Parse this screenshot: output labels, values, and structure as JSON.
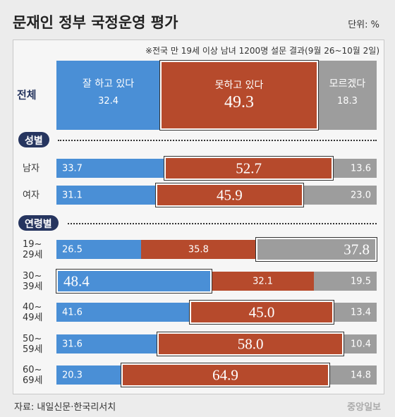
{
  "chart_data": {
    "type": "bar",
    "stacked": true,
    "title": "문재인 정부 국정운영 평가",
    "unit": "단위: %",
    "note": "※전국 만 19세 이상 남녀 1200명 설문 결과(9월 26~10월 2일)",
    "source": "자료: 내일신문·한국리서치",
    "brand": "중앙일보",
    "categories": [
      "전체",
      "남자",
      "여자",
      "19~\n29세",
      "30~\n39세",
      "40~\n49세",
      "50~\n59세",
      "60~\n69세"
    ],
    "groups": [
      {
        "name": "성별"
      },
      {
        "name": "연령별"
      }
    ],
    "series": [
      {
        "name": "잘 하고 있다",
        "color": "#4a8fd6",
        "values": [
          32.4,
          33.7,
          31.1,
          26.5,
          48.4,
          41.6,
          31.6,
          20.3
        ],
        "value_labels": [
          "32.4",
          "33.7",
          "31.1",
          "26.5",
          "48.4",
          "41.6",
          "31.6",
          "20.3"
        ]
      },
      {
        "name": "못하고 있다",
        "color": "#b64a2c",
        "values": [
          49.3,
          52.7,
          45.9,
          35.8,
          32.1,
          45.0,
          58.0,
          64.9
        ],
        "value_labels": [
          "49.3",
          "52.7",
          "45.9",
          "35.8",
          "32.1",
          "45.0",
          "58.0",
          "64.9"
        ]
      },
      {
        "name": "모르겠다",
        "color": "#9d9d9d",
        "values": [
          18.3,
          13.6,
          23.0,
          37.8,
          19.5,
          13.4,
          10.4,
          14.8
        ],
        "value_labels": [
          "18.3",
          "13.6",
          "23.0",
          "37.8",
          "19.5",
          "13.4",
          "10.4",
          "14.8"
        ]
      }
    ]
  }
}
